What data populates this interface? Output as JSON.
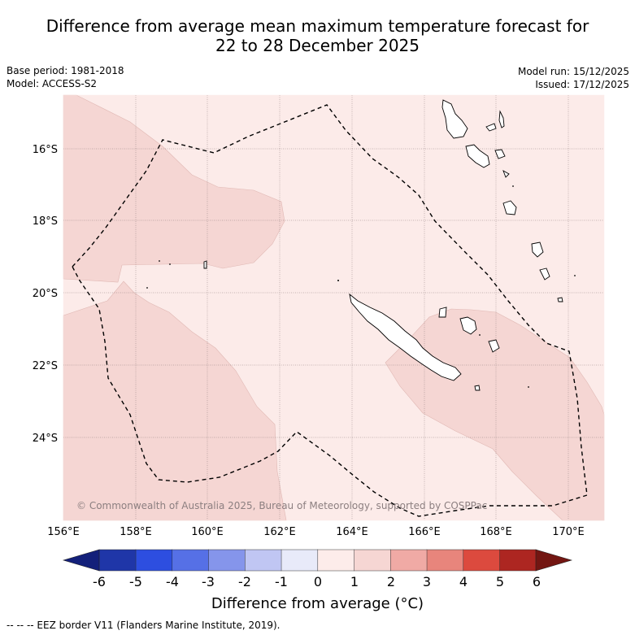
{
  "title_line1": "Difference from average mean maximum temperature forecast for",
  "title_line2": "22 to 28 December 2025",
  "meta": {
    "base_period": "Base period: 1981-2018",
    "model": "Model: ACCESS-S2",
    "model_run": "Model run: 15/12/2025",
    "issued": "Issued: 17/12/2025"
  },
  "map": {
    "x_ticks": [
      "156°E",
      "158°E",
      "160°E",
      "162°E",
      "164°E",
      "166°E",
      "168°E",
      "170°E"
    ],
    "y_ticks": [
      "16°S",
      "18°S",
      "20°S",
      "22°S",
      "24°S"
    ],
    "copyright": "© Commonwealth of Australia 2025, Bureau of Meteorology, supported by COSPPac",
    "colors": {
      "class_0_1": "#fcebe9",
      "class_1_2": "#f5d6d3",
      "eez_line": "#000000"
    }
  },
  "colorbar": {
    "ticks": [
      "-6",
      "-5",
      "-4",
      "-3",
      "-2",
      "-1",
      "0",
      "1",
      "2",
      "3",
      "4",
      "5",
      "6"
    ],
    "colors": [
      "#1f36a8",
      "#2d4ee0",
      "#5670e6",
      "#8595eb",
      "#c0c6f3",
      "#e8eaf9",
      "#fdecea",
      "#f6d6d3",
      "#f0aaa5",
      "#e8857c",
      "#dc4a3e",
      "#ad2621"
    ],
    "low_extend_color": "#13207a",
    "high_extend_color": "#731612",
    "title": "Difference from average (°C)"
  },
  "footer": "--  --  -- EEZ border V11 (Flanders Marine Institute, 2019)."
}
